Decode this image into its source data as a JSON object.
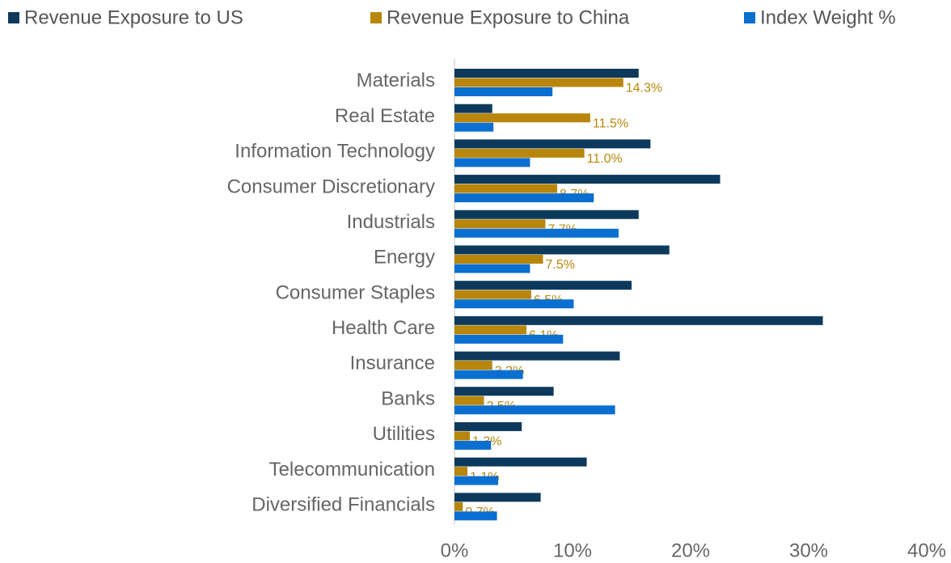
{
  "chart_data": {
    "type": "hbar",
    "categories": [
      "Materials",
      "Real Estate",
      "Information Technology",
      "Consumer Discretionary",
      "Industrials",
      "Energy",
      "Consumer Staples",
      "Health Care",
      "Insurance",
      "Banks",
      "Utilities",
      "Telecommunication",
      "Diversified Financials"
    ],
    "series": [
      {
        "name": "Revenue Exposure to US",
        "color": "#0d3a5c",
        "values": [
          15.6,
          3.2,
          16.6,
          22.5,
          15.6,
          18.2,
          15.0,
          31.2,
          14.0,
          8.4,
          5.7,
          11.2,
          7.3
        ]
      },
      {
        "name": "Revenue Exposure to China",
        "color": "#b8860b",
        "values": [
          14.3,
          11.5,
          11.0,
          8.7,
          7.7,
          7.5,
          6.5,
          6.1,
          3.2,
          2.5,
          1.3,
          1.1,
          0.7
        ],
        "value_labels": [
          "14.3%",
          "11.5%",
          "11.0%",
          "8.7%",
          "7.7%",
          "7.5%",
          "6.5%",
          "6.1%",
          "3.2%",
          "2.5%",
          "1.3%",
          "1.1%",
          "0.7%"
        ]
      },
      {
        "name": "Index Weight %",
        "color": "#0b6fd1",
        "values": [
          8.3,
          3.3,
          6.4,
          11.8,
          13.9,
          6.4,
          10.1,
          9.2,
          5.8,
          13.6,
          3.1,
          3.7,
          3.6
        ]
      }
    ],
    "xlim": [
      0,
      40
    ],
    "xticks": [
      {
        "value": 0,
        "label": "0%"
      },
      {
        "value": 10,
        "label": "10%"
      },
      {
        "value": 20,
        "label": "20%"
      },
      {
        "value": 30,
        "label": "30%"
      },
      {
        "value": 40,
        "label": "40%"
      }
    ]
  }
}
